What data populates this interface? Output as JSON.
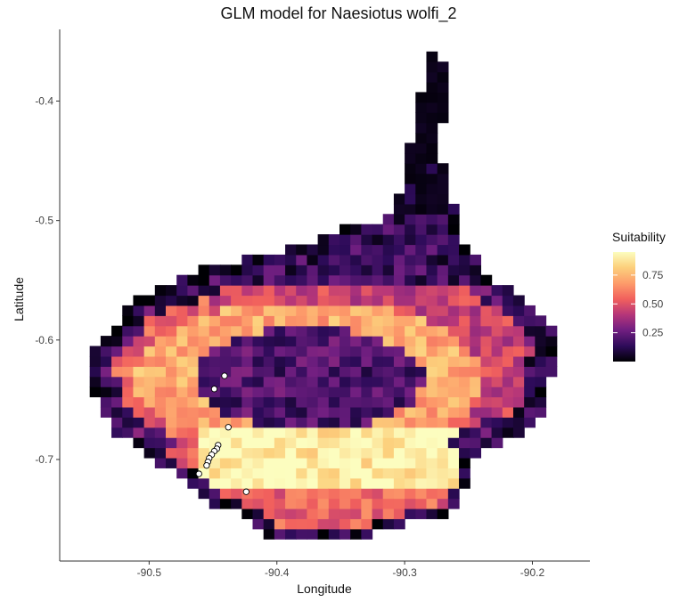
{
  "chart_data": {
    "type": "heatmap",
    "title": "GLM model for Naesiotus wolfi_2",
    "xlabel": "Longitude",
    "ylabel": "Latitude",
    "xlim": [
      -90.57,
      -90.155
    ],
    "ylim": [
      -0.785,
      -0.34
    ],
    "x_ticks": [
      -90.5,
      -90.4,
      -90.3,
      -90.2
    ],
    "x_tick_labels": [
      "-90.5",
      "-90.4",
      "-90.3",
      "-90.2"
    ],
    "y_ticks": [
      -0.4,
      -0.5,
      -0.6,
      -0.7
    ],
    "y_tick_labels": [
      "-0.4",
      "-0.5",
      "-0.6",
      "-0.7"
    ],
    "grid": false,
    "legend": {
      "title": "Suitability",
      "placement": "right",
      "ticks": [
        0.25,
        0.5,
        0.75
      ],
      "tick_labels": [
        "0.25",
        "0.50",
        "0.75"
      ],
      "range": [
        0.0,
        0.95
      ]
    },
    "colormap": "inferno",
    "colors": [
      "#000004",
      "#2d0b59",
      "#721f81",
      "#b63679",
      "#f1605d",
      "#fd9a6a",
      "#fcd07c",
      "#fcfdbf"
    ],
    "cell_size_deg": 0.0085,
    "region_summary": [
      {
        "region": "northern peninsula (lon -90.30 to -90.27, lat -0.37 to -0.49)",
        "suitability": 0.04
      },
      {
        "region": "northern caldera rim (lat -0.50 to -0.57)",
        "suitability": 0.15
      },
      {
        "region": "caldera interior (lat -0.60 to -0.68)",
        "suitability": 0.2
      },
      {
        "region": "inner ring (lat -0.58 to -0.66)",
        "suitability": 0.72
      },
      {
        "region": "southern flank band (lat -0.67 to -0.72)",
        "suitability": 0.9
      },
      {
        "region": "western flank (lon -90.50 to -90.46)",
        "suitability": 0.55
      },
      {
        "region": "southern coast (lat -0.73 to -0.77)",
        "suitability": 0.55
      },
      {
        "region": "outer edge",
        "suitability": 0.08
      }
    ],
    "occurrence_points": [
      {
        "x": -90.441,
        "y": -0.63
      },
      {
        "x": -90.449,
        "y": -0.641
      },
      {
        "x": -90.438,
        "y": -0.673
      },
      {
        "x": -90.446,
        "y": -0.688
      },
      {
        "x": -90.447,
        "y": -0.691
      },
      {
        "x": -90.449,
        "y": -0.693
      },
      {
        "x": -90.451,
        "y": -0.696
      },
      {
        "x": -90.453,
        "y": -0.699
      },
      {
        "x": -90.454,
        "y": -0.702
      },
      {
        "x": -90.455,
        "y": -0.705
      },
      {
        "x": -90.461,
        "y": -0.712
      },
      {
        "x": -90.424,
        "y": -0.727
      }
    ]
  }
}
